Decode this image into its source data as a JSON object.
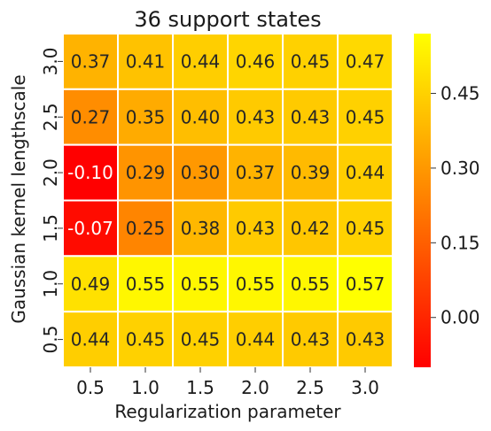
{
  "chart_data": {
    "type": "heatmap",
    "title": "36 support states",
    "xlabel": "Regularization parameter",
    "ylabel": "Gaussian kernel lengthscale",
    "x_categories": [
      "0.5",
      "1.0",
      "1.5",
      "2.0",
      "2.5",
      "3.0"
    ],
    "y_categories": [
      "3.0",
      "2.5",
      "2.0",
      "1.5",
      "1.0",
      "0.5"
    ],
    "values": [
      [
        0.37,
        0.41,
        0.44,
        0.46,
        0.45,
        0.47
      ],
      [
        0.27,
        0.35,
        0.4,
        0.43,
        0.43,
        0.45
      ],
      [
        -0.1,
        0.29,
        0.3,
        0.37,
        0.39,
        0.44
      ],
      [
        -0.07,
        0.25,
        0.38,
        0.43,
        0.42,
        0.45
      ],
      [
        0.49,
        0.55,
        0.55,
        0.55,
        0.55,
        0.57
      ],
      [
        0.44,
        0.45,
        0.45,
        0.44,
        0.43,
        0.43
      ]
    ],
    "labels": [
      [
        "0.37",
        "0.41",
        "0.44",
        "0.46",
        "0.45",
        "0.47"
      ],
      [
        "0.27",
        "0.35",
        "0.40",
        "0.43",
        "0.43",
        "0.45"
      ],
      [
        "-0.10",
        "0.29",
        "0.30",
        "0.37",
        "0.39",
        "0.44"
      ],
      [
        "-0.07",
        "0.25",
        "0.38",
        "0.43",
        "0.42",
        "0.45"
      ],
      [
        "0.49",
        "0.55",
        "0.55",
        "0.55",
        "0.55",
        "0.57"
      ],
      [
        "0.44",
        "0.45",
        "0.45",
        "0.44",
        "0.43",
        "0.43"
      ]
    ],
    "colormap": "autumn",
    "vmin": -0.1,
    "vmax": 0.57,
    "colorbar_ticks": [
      0.0,
      0.15,
      0.3,
      0.45
    ],
    "colorbar_tick_labels": [
      "0.00",
      "0.15",
      "0.30",
      "0.45"
    ],
    "grid": false,
    "cell_border_color": "#ffffff"
  }
}
